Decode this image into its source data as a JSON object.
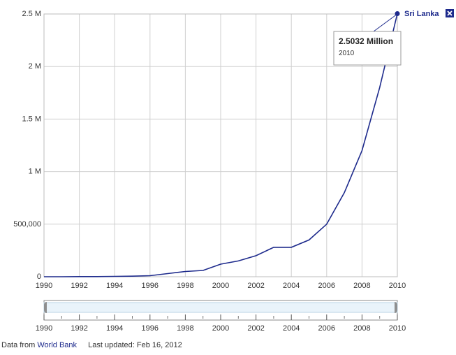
{
  "chart_data": {
    "type": "line",
    "x": [
      1990,
      1991,
      1992,
      1993,
      1994,
      1995,
      1996,
      1997,
      1998,
      1999,
      2000,
      2001,
      2002,
      2003,
      2004,
      2005,
      2006,
      2007,
      2008,
      2009,
      2010
    ],
    "series": [
      {
        "name": "Sri Lanka",
        "values": [
          0,
          0,
          1000,
          1500,
          3000,
          5000,
          10000,
          30000,
          50000,
          60000,
          120000,
          150000,
          200000,
          280000,
          280000,
          350000,
          500000,
          800000,
          1200000,
          1800000,
          2503200
        ]
      }
    ],
    "xlim": [
      1990,
      2010
    ],
    "ylim": [
      0,
      2500000
    ],
    "x_ticks": [
      "1990",
      "1992",
      "1994",
      "1996",
      "1998",
      "2000",
      "2002",
      "2004",
      "2006",
      "2008",
      "2010"
    ],
    "y_ticks": [
      {
        "value": 0,
        "label": "0"
      },
      {
        "value": 500000,
        "label": "500,000"
      },
      {
        "value": 1000000,
        "label": "1 M"
      },
      {
        "value": 1500000,
        "label": "1.5 M"
      },
      {
        "value": 2000000,
        "label": "2 M"
      },
      {
        "value": 2500000,
        "label": "2.5 M"
      }
    ],
    "grid": true,
    "legend_placement": "top-right",
    "tooltip": {
      "value": "2.5032 Million",
      "year": "2010"
    },
    "series_color": "#1d2a8c",
    "range_selector": {
      "start": 1990,
      "end": 2010
    }
  },
  "legend": {
    "label": "Sri Lanka",
    "remove_icon": "close-icon"
  },
  "footer": {
    "data_from": "Data from",
    "source_link": "World Bank",
    "last_updated": "Last updated: Feb 16, 2012"
  }
}
